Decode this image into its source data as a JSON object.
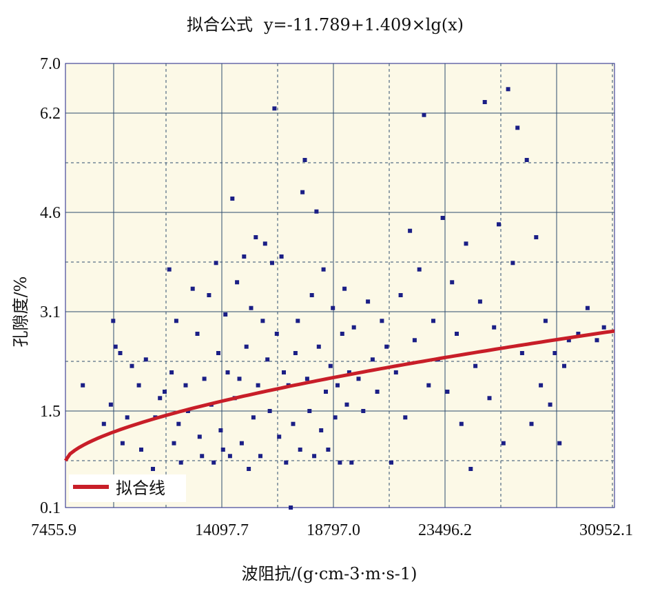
{
  "chart_data": {
    "type": "scatter",
    "title_prefix": "拟合公式",
    "title_formula": "y=-11.789+1.409×lg(x)",
    "xlabel": "波阻抗/(g·cm-3·m·s-1)",
    "ylabel": "孔隙度/%",
    "x_ticks": [
      "7455.9",
      "14097.7",
      "18797.0",
      "23496.2",
      "30952.1"
    ],
    "x_tick_values": [
      7455.9,
      14097.7,
      18797.0,
      23496.2,
      30952.1
    ],
    "y_ticks": [
      "0.1",
      "1.5",
      "3.1",
      "4.6",
      "6.2",
      "7.0"
    ],
    "xlim": [
      7455.9,
      30952.1
    ],
    "ylim": [
      0.1,
      7.0
    ],
    "grid": true,
    "legend": {
      "label": "拟合线",
      "position": "bottom-left"
    },
    "colors": {
      "points": "#1b1f86",
      "fit": "#c81e28",
      "plot_bg": "#fcf9e7",
      "grid": "#2c4a6e"
    },
    "fit": {
      "a": -11.789,
      "b": 1.409,
      "func": "log10"
    },
    "points": [
      [
        8200,
        2.0
      ],
      [
        9100,
        1.4
      ],
      [
        9400,
        1.7
      ],
      [
        9500,
        3.0
      ],
      [
        9600,
        2.6
      ],
      [
        9800,
        2.5
      ],
      [
        9900,
        1.1
      ],
      [
        10100,
        1.5
      ],
      [
        10300,
        2.3
      ],
      [
        10600,
        2.0
      ],
      [
        10700,
        1.0
      ],
      [
        10900,
        2.4
      ],
      [
        11200,
        0.7
      ],
      [
        11300,
        1.5
      ],
      [
        11500,
        1.8
      ],
      [
        11700,
        1.9
      ],
      [
        11900,
        3.8
      ],
      [
        12000,
        2.2
      ],
      [
        12100,
        1.1
      ],
      [
        12200,
        3.0
      ],
      [
        12300,
        1.4
      ],
      [
        12400,
        0.8
      ],
      [
        12600,
        2.0
      ],
      [
        12700,
        1.6
      ],
      [
        12900,
        3.5
      ],
      [
        13100,
        2.8
      ],
      [
        13200,
        1.2
      ],
      [
        13300,
        0.9
      ],
      [
        13400,
        2.1
      ],
      [
        13600,
        3.4
      ],
      [
        13700,
        1.7
      ],
      [
        13800,
        0.8
      ],
      [
        13900,
        3.9
      ],
      [
        14000,
        2.5
      ],
      [
        14100,
        1.3
      ],
      [
        14200,
        1.0
      ],
      [
        14300,
        3.1
      ],
      [
        14400,
        2.2
      ],
      [
        14500,
        0.9
      ],
      [
        14600,
        4.9
      ],
      [
        14700,
        1.8
      ],
      [
        14800,
        3.6
      ],
      [
        14900,
        2.1
      ],
      [
        15000,
        1.1
      ],
      [
        15100,
        4.0
      ],
      [
        15200,
        2.6
      ],
      [
        15300,
        0.7
      ],
      [
        15400,
        3.2
      ],
      [
        15500,
        1.5
      ],
      [
        15600,
        4.3
      ],
      [
        15700,
        2.0
      ],
      [
        15800,
        0.9
      ],
      [
        15900,
        3.0
      ],
      [
        16000,
        4.2
      ],
      [
        16100,
        2.4
      ],
      [
        16200,
        1.6
      ],
      [
        16300,
        3.9
      ],
      [
        16400,
        6.3
      ],
      [
        16500,
        2.8
      ],
      [
        16600,
        1.2
      ],
      [
        16700,
        4.0
      ],
      [
        16800,
        2.2
      ],
      [
        16900,
        0.8
      ],
      [
        17000,
        2.0
      ],
      [
        17100,
        0.1
      ],
      [
        17200,
        1.4
      ],
      [
        17300,
        2.5
      ],
      [
        17400,
        3.0
      ],
      [
        17500,
        1.0
      ],
      [
        17600,
        5.0
      ],
      [
        17700,
        5.5
      ],
      [
        17800,
        2.1
      ],
      [
        17900,
        1.6
      ],
      [
        18000,
        3.4
      ],
      [
        18100,
        0.9
      ],
      [
        18200,
        4.7
      ],
      [
        18300,
        2.6
      ],
      [
        18400,
        1.3
      ],
      [
        18500,
        3.8
      ],
      [
        18600,
        1.9
      ],
      [
        18700,
        1.0
      ],
      [
        18800,
        2.3
      ],
      [
        18900,
        3.2
      ],
      [
        19000,
        1.5
      ],
      [
        19100,
        2.0
      ],
      [
        19200,
        0.8
      ],
      [
        19300,
        2.8
      ],
      [
        19400,
        3.5
      ],
      [
        19500,
        1.7
      ],
      [
        19600,
        2.2
      ],
      [
        19700,
        0.8
      ],
      [
        19800,
        2.9
      ],
      [
        20000,
        2.1
      ],
      [
        20200,
        1.6
      ],
      [
        20400,
        3.3
      ],
      [
        20600,
        2.4
      ],
      [
        20800,
        1.9
      ],
      [
        21000,
        3.0
      ],
      [
        21200,
        2.6
      ],
      [
        21400,
        0.8
      ],
      [
        21600,
        2.2
      ],
      [
        21800,
        3.4
      ],
      [
        22000,
        1.5
      ],
      [
        22200,
        4.4
      ],
      [
        22400,
        2.7
      ],
      [
        22600,
        3.8
      ],
      [
        22800,
        6.2
      ],
      [
        23000,
        2.0
      ],
      [
        23200,
        3.0
      ],
      [
        23400,
        2.4
      ],
      [
        23600,
        4.6
      ],
      [
        23800,
        1.9
      ],
      [
        24000,
        3.6
      ],
      [
        24200,
        2.8
      ],
      [
        24400,
        1.4
      ],
      [
        24600,
        4.2
      ],
      [
        24800,
        0.7
      ],
      [
        25000,
        2.3
      ],
      [
        25200,
        3.3
      ],
      [
        25400,
        6.4
      ],
      [
        25600,
        1.8
      ],
      [
        25800,
        2.9
      ],
      [
        26000,
        4.5
      ],
      [
        26200,
        1.1
      ],
      [
        26400,
        6.6
      ],
      [
        26600,
        3.9
      ],
      [
        26800,
        6.0
      ],
      [
        27000,
        2.5
      ],
      [
        27200,
        5.5
      ],
      [
        27400,
        1.4
      ],
      [
        27600,
        4.3
      ],
      [
        27800,
        2.0
      ],
      [
        28000,
        3.0
      ],
      [
        28200,
        1.7
      ],
      [
        28400,
        2.5
      ],
      [
        28600,
        1.1
      ],
      [
        28800,
        2.3
      ],
      [
        29000,
        2.7
      ],
      [
        29400,
        2.8
      ],
      [
        29800,
        3.2
      ],
      [
        30200,
        2.7
      ],
      [
        30500,
        2.9
      ]
    ]
  }
}
